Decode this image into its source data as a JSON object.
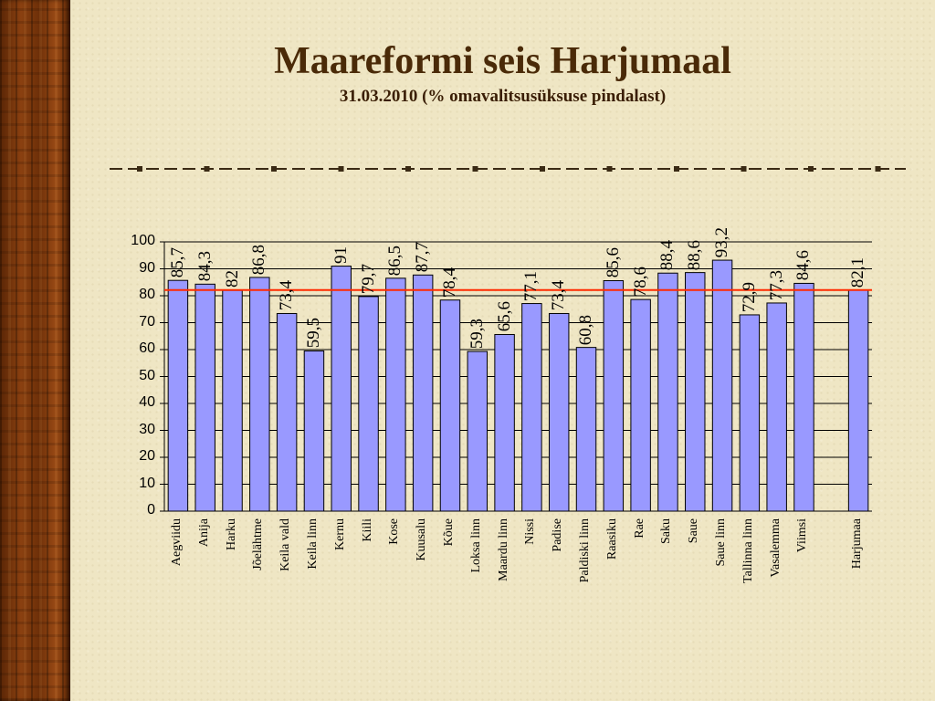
{
  "slide": {
    "title": "Maareformi seis Harjumaal",
    "subtitle": "31.03.2010 (% omavalitsusüksuse pindalast)"
  },
  "colors": {
    "bar_fill": "#9999ff",
    "bar_stroke": "#000000",
    "reference_line": "#ff2a00",
    "title": "#4a2a08",
    "divider": "#3a2a14"
  },
  "chart_data": {
    "type": "bar",
    "categories": [
      "Aegviidu",
      "Anija",
      "Harku",
      "Jõelähtme",
      "Keila vald",
      "Keila linn",
      "Kernu",
      "Kiili",
      "Kose",
      "Kuusalu",
      "Kõue",
      "Loksa linn",
      "Maardu linn",
      "Nissi",
      "Padise",
      "Paldiski linn",
      "Raasiku",
      "Rae",
      "Saku",
      "Saue",
      "Saue linn",
      "Tallinna linn",
      "Vasalemma",
      "Viimsi",
      "",
      "Harjumaa"
    ],
    "values": [
      85.7,
      84.3,
      82,
      86.8,
      73.4,
      59.5,
      91,
      79.7,
      86.5,
      87.7,
      78.4,
      59.3,
      65.6,
      77.1,
      73.4,
      60.8,
      85.6,
      78.6,
      88.4,
      88.6,
      93.2,
      72.9,
      77.3,
      84.6,
      null,
      82.1
    ],
    "value_labels": [
      "85,7",
      "84,3",
      "82",
      "86,8",
      "73,4",
      "59,5",
      "91",
      "79,7",
      "86,5",
      "87,7",
      "78,4",
      "59,3",
      "65,6",
      "77,1",
      "73,4",
      "60,8",
      "85,6",
      "78,6",
      "88,4",
      "88,6",
      "93,2",
      "72,9",
      "77,3",
      "84,6",
      "",
      "82,1"
    ],
    "reference_line": {
      "value": 82.1,
      "color": "#ff2a00"
    },
    "ylim": [
      0,
      100
    ],
    "yticks": [
      0,
      10,
      20,
      30,
      40,
      50,
      60,
      70,
      80,
      90,
      100
    ],
    "grid": true,
    "legend": "none",
    "xlabel": "",
    "ylabel": ""
  }
}
